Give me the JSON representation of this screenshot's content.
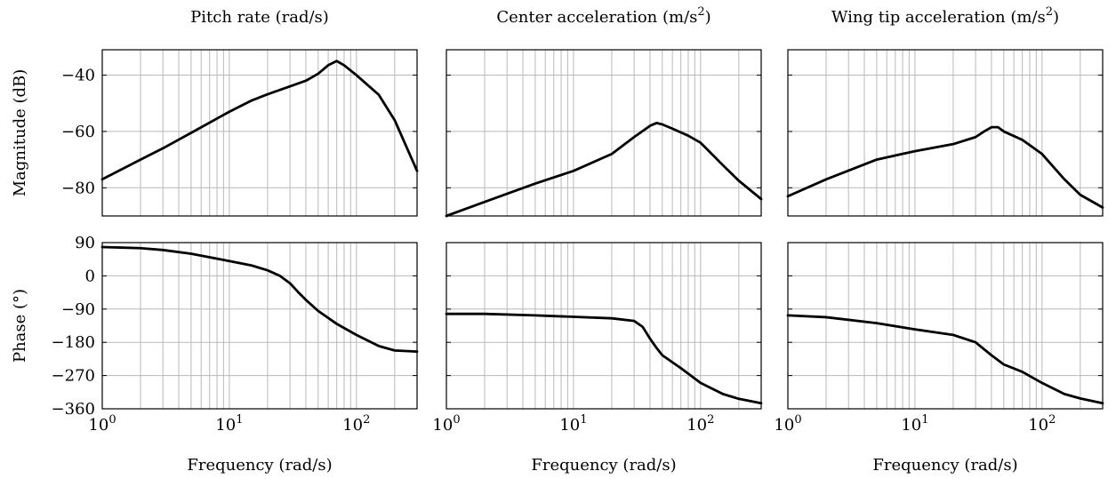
{
  "chart_data": {
    "type": "line",
    "layout": "2x3 Bode plot grid",
    "x_scale": "log",
    "xlim": [
      1,
      300
    ],
    "grid": true,
    "columns": [
      {
        "title": "Pitch rate (rad/s)",
        "title_sup": ""
      },
      {
        "title": "Center acceleration (m/s",
        "title_sup": "2"
      },
      {
        "title": "Wing tip acceleration (m/s",
        "title_sup": "2"
      }
    ],
    "xlabel": "Frequency (rad/s)",
    "x_ticks": [
      {
        "value": 1,
        "base": "10",
        "exp": "0"
      },
      {
        "value": 10,
        "base": "10",
        "exp": "1"
      },
      {
        "value": 100,
        "base": "10",
        "exp": "2"
      }
    ],
    "rows": [
      {
        "name": "magnitude",
        "ylabel": "Magnitude (dB)",
        "ylim": [
          -90,
          -31
        ],
        "y_ticks": [
          {
            "value": -40,
            "label": "−40"
          },
          {
            "value": -60,
            "label": "−60"
          },
          {
            "value": -80,
            "label": "−80"
          }
        ]
      },
      {
        "name": "phase",
        "ylabel": "Phase (°)",
        "ylim": [
          -360,
          90
        ],
        "y_ticks": [
          {
            "value": 90,
            "label": "90"
          },
          {
            "value": 0,
            "label": "0"
          },
          {
            "value": -90,
            "label": "−90"
          },
          {
            "value": -180,
            "label": "−180"
          },
          {
            "value": -270,
            "label": "−270"
          },
          {
            "value": -360,
            "label": "−360"
          }
        ]
      }
    ],
    "series": [
      {
        "row": 0,
        "col": 0,
        "x": [
          1,
          2,
          3,
          5,
          10,
          15,
          20,
          30,
          40,
          50,
          60,
          70,
          80,
          100,
          150,
          200,
          300
        ],
        "y": [
          -77,
          -70,
          -66,
          -60.5,
          -53,
          -49,
          -46.8,
          -44,
          -42,
          -39.5,
          -36.5,
          -35,
          -36.5,
          -40,
          -47,
          -56,
          -74
        ]
      },
      {
        "row": 0,
        "col": 1,
        "x": [
          1,
          2,
          5,
          10,
          20,
          30,
          40,
          45,
          50,
          60,
          80,
          100,
          150,
          200,
          300
        ],
        "y": [
          -90,
          -85,
          -78.5,
          -74,
          -68,
          -62,
          -58,
          -57,
          -57.5,
          -59,
          -61.5,
          -64,
          -72,
          -77.5,
          -84
        ]
      },
      {
        "row": 0,
        "col": 2,
        "x": [
          1,
          2,
          5,
          10,
          20,
          30,
          35,
          40,
          45,
          50,
          70,
          100,
          150,
          200,
          300
        ],
        "y": [
          -83,
          -77,
          -70,
          -67,
          -64.5,
          -62,
          -60,
          -58.5,
          -58.5,
          -60,
          -63,
          -68,
          -77,
          -82.5,
          -87
        ]
      },
      {
        "row": 1,
        "col": 0,
        "x": [
          1,
          2,
          3,
          5,
          10,
          15,
          20,
          25,
          30,
          35,
          40,
          50,
          70,
          100,
          150,
          200,
          300
        ],
        "y": [
          78,
          75,
          70,
          60,
          40,
          28,
          15,
          0,
          -20,
          -45,
          -65,
          -95,
          -130,
          -160,
          -190,
          -202,
          -205
        ]
      },
      {
        "row": 1,
        "col": 1,
        "x": [
          1,
          2,
          5,
          10,
          20,
          30,
          35,
          40,
          45,
          50,
          70,
          100,
          150,
          200,
          300
        ],
        "y": [
          -103,
          -103,
          -107,
          -111,
          -115,
          -122,
          -138,
          -170,
          -195,
          -215,
          -250,
          -290,
          -320,
          -333,
          -345
        ]
      },
      {
        "row": 1,
        "col": 2,
        "x": [
          1,
          2,
          5,
          10,
          20,
          30,
          40,
          50,
          70,
          100,
          150,
          200,
          300
        ],
        "y": [
          -107,
          -112,
          -128,
          -145,
          -160,
          -180,
          -215,
          -240,
          -260,
          -290,
          -320,
          -332,
          -345
        ]
      }
    ]
  }
}
